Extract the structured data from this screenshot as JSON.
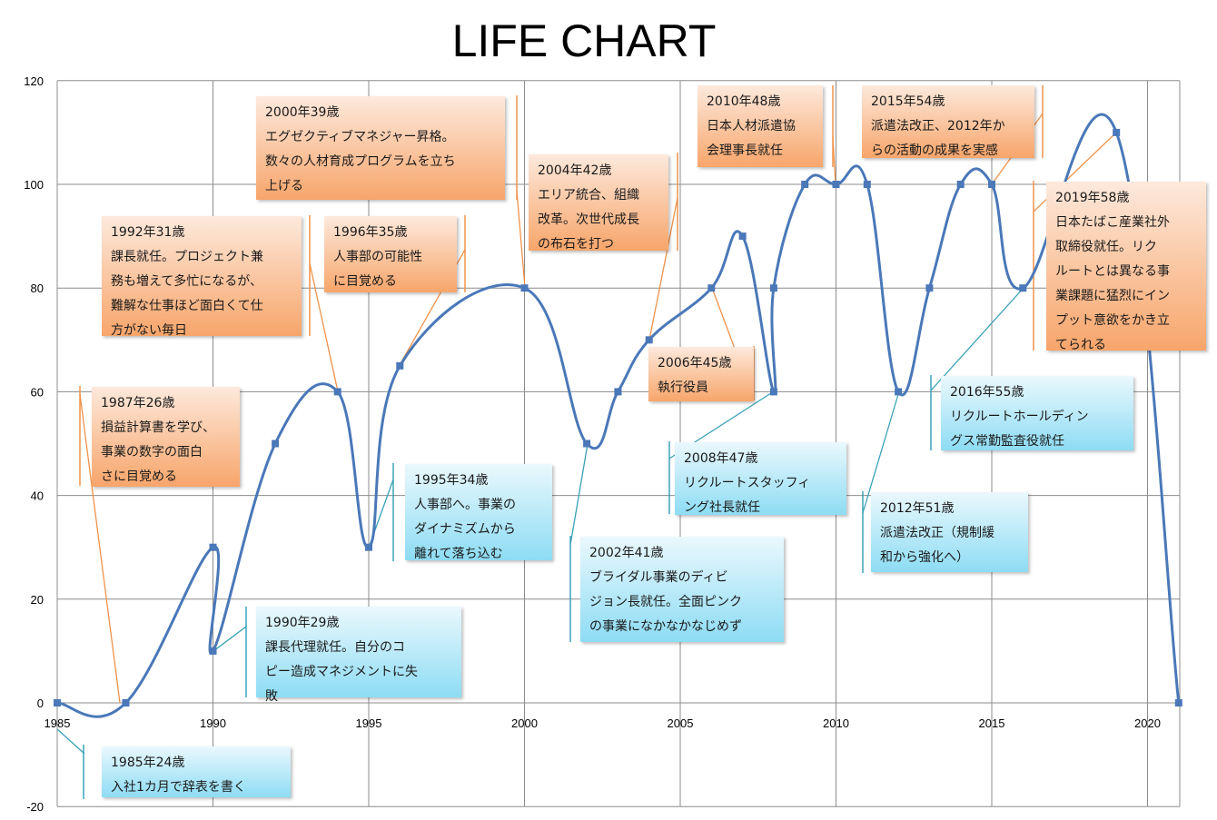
{
  "chart_data": {
    "type": "line",
    "title": "LIFE CHART",
    "xlabel": "",
    "ylabel": "",
    "xlim": [
      1985,
      2021
    ],
    "ylim": [
      -20,
      120
    ],
    "x_ticks": [
      "1985",
      "1990",
      "1995",
      "2000",
      "2005",
      "2010",
      "2015",
      "2020"
    ],
    "y_ticks": [
      "120",
      "100",
      "80",
      "60",
      "40",
      "20",
      "0",
      "-20"
    ],
    "grid": true,
    "legend": "none",
    "series_color": "#4a78b8",
    "points": [
      {
        "x": 1985,
        "y": 0
      },
      {
        "x": 1987.2,
        "y": 0
      },
      {
        "x": 1990,
        "y": 30
      },
      {
        "x": 1990,
        "y": 10
      },
      {
        "x": 1992,
        "y": 50
      },
      {
        "x": 1994,
        "y": 60
      },
      {
        "x": 1995,
        "y": 30
      },
      {
        "x": 1996,
        "y": 65
      },
      {
        "x": 2000,
        "y": 80
      },
      {
        "x": 2002,
        "y": 50
      },
      {
        "x": 2003,
        "y": 60
      },
      {
        "x": 2004,
        "y": 70
      },
      {
        "x": 2006,
        "y": 80
      },
      {
        "x": 2007,
        "y": 90
      },
      {
        "x": 2008,
        "y": 60
      },
      {
        "x": 2008,
        "y": 80
      },
      {
        "x": 2009,
        "y": 100
      },
      {
        "x": 2010,
        "y": 100
      },
      {
        "x": 2011,
        "y": 100
      },
      {
        "x": 2012,
        "y": 60
      },
      {
        "x": 2013,
        "y": 80
      },
      {
        "x": 2014,
        "y": 100
      },
      {
        "x": 2015,
        "y": 100
      },
      {
        "x": 2016,
        "y": 80
      },
      {
        "x": 2019,
        "y": 110
      },
      {
        "x": 2021,
        "y": 0
      }
    ],
    "annotations": [
      {
        "tone": "blue",
        "lines": [
          "1985年24歳",
          "入社1カ月で辞表を書く"
        ]
      },
      {
        "tone": "orange",
        "lines": [
          "1987年26歳",
          "損益計算書を学び、",
          "事業の数字の面白",
          "さに目覚める"
        ]
      },
      {
        "tone": "blue",
        "lines": [
          "1990年29歳",
          "課長代理就任。自分のコ",
          "ピー造成マネジメントに失",
          "敗"
        ]
      },
      {
        "tone": "orange",
        "lines": [
          "1992年31歳",
          "課長就任。プロジェクト兼",
          "務も増えて多忙になるが、",
          "難解な仕事ほど面白くて仕",
          "方がない毎日"
        ]
      },
      {
        "tone": "blue",
        "lines": [
          "1995年34歳",
          "人事部へ。事業の",
          "ダイナミズムから",
          "離れて落ち込む"
        ]
      },
      {
        "tone": "orange",
        "lines": [
          "1996年35歳",
          "人事部の可能性",
          "に目覚める"
        ]
      },
      {
        "tone": "orange",
        "lines": [
          "2000年39歳",
          "エグゼクティブマネジャー昇格。",
          "数々の人材育成プログラムを立ち",
          "上げる"
        ]
      },
      {
        "tone": "blue",
        "lines": [
          "2002年41歳",
          "ブライダル事業のディビ",
          "ジョン長就任。全面ピンク",
          "の事業になかなかなじめず"
        ]
      },
      {
        "tone": "orange",
        "lines": [
          "2004年42歳",
          "エリア統合、組織",
          "改革。次世代成長",
          "の布石を打つ"
        ]
      },
      {
        "tone": "orange",
        "lines": [
          "2006年45歳",
          "執行役員"
        ]
      },
      {
        "tone": "blue",
        "lines": [
          "2008年47歳",
          "リクルートスタッフィ",
          "ング社長就任"
        ]
      },
      {
        "tone": "orange",
        "lines": [
          "2010年48歳",
          "日本人材派遣協",
          "会理事長就任"
        ]
      },
      {
        "tone": "blue",
        "lines": [
          "2012年51歳",
          "派遣法改正（規制緩",
          "和から強化へ）"
        ]
      },
      {
        "tone": "orange",
        "lines": [
          "2015年54歳",
          "派遣法改正、2012年か",
          "らの活動の成果を実感"
        ]
      },
      {
        "tone": "blue",
        "lines": [
          "2016年55歳",
          "リクルートホールディン",
          "グス常勤監査役就任"
        ]
      },
      {
        "tone": "orange",
        "lines": [
          "2019年58歳",
          "日本たばこ産業社外",
          "取締役就任。リク",
          "ルートとは異なる事",
          "業課題に猛烈にイン",
          "プット意欲をかき立",
          "てられる"
        ]
      }
    ]
  }
}
